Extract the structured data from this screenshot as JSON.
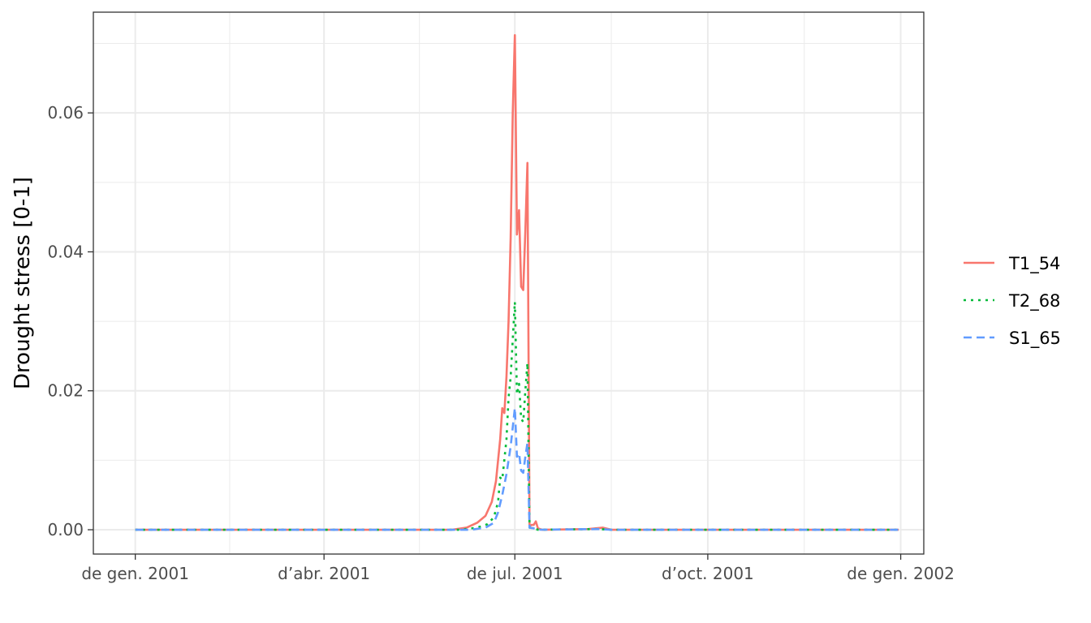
{
  "chart_data": {
    "type": "line",
    "title": "",
    "xlabel": "",
    "ylabel": "Drought stress [0-1]",
    "x_type": "date",
    "xlim": [
      "2000-12-12",
      "2002-01-12"
    ],
    "ylim": [
      -0.0035,
      0.0745
    ],
    "x_ticks": [
      {
        "date": "2001-01-01",
        "label": "de gen. 2001"
      },
      {
        "date": "2001-04-01",
        "label": "d’abr. 2001"
      },
      {
        "date": "2001-07-01",
        "label": "de jul. 2001"
      },
      {
        "date": "2001-10-01",
        "label": "d’oct. 2001"
      },
      {
        "date": "2002-01-01",
        "label": "de gen. 2002"
      }
    ],
    "y_ticks": [
      {
        "value": 0.0,
        "label": "0.00"
      },
      {
        "value": 0.02,
        "label": "0.02"
      },
      {
        "value": 0.04,
        "label": "0.04"
      },
      {
        "value": 0.06,
        "label": "0.06"
      }
    ],
    "grid": true,
    "legend_position": "right",
    "series": [
      {
        "name": "T1_54",
        "color": "#F8766D",
        "dash": "solid",
        "points": [
          [
            "2001-01-01",
            0
          ],
          [
            "2001-06-01",
            0
          ],
          [
            "2001-06-08",
            0.0003
          ],
          [
            "2001-06-13",
            0.001
          ],
          [
            "2001-06-17",
            0.002
          ],
          [
            "2001-06-20",
            0.004
          ],
          [
            "2001-06-22",
            0.007
          ],
          [
            "2001-06-23",
            0.01
          ],
          [
            "2001-06-24",
            0.013
          ],
          [
            "2001-06-25",
            0.0175
          ],
          [
            "2001-06-26",
            0.0168
          ],
          [
            "2001-06-27",
            0.022
          ],
          [
            "2001-06-28",
            0.03
          ],
          [
            "2001-06-29",
            0.042
          ],
          [
            "2001-06-30",
            0.06
          ],
          [
            "2001-07-01",
            0.0712
          ],
          [
            "2001-07-02",
            0.0425
          ],
          [
            "2001-07-03",
            0.046
          ],
          [
            "2001-07-04",
            0.035
          ],
          [
            "2001-07-05",
            0.0345
          ],
          [
            "2001-07-06",
            0.043
          ],
          [
            "2001-07-07",
            0.0528
          ],
          [
            "2001-07-08",
            0.0005
          ],
          [
            "2001-07-09",
            0.0007
          ],
          [
            "2001-07-10",
            0.0007
          ],
          [
            "2001-07-11",
            0.0012
          ],
          [
            "2001-07-12",
            0.0002
          ],
          [
            "2001-07-14",
            0
          ],
          [
            "2001-08-05",
            0.0001
          ],
          [
            "2001-08-12",
            0.0003
          ],
          [
            "2001-08-16",
            0
          ],
          [
            "2001-12-31",
            0
          ]
        ]
      },
      {
        "name": "T2_68",
        "color": "#00BA38",
        "dash": "dotted",
        "points": [
          [
            "2001-01-01",
            0
          ],
          [
            "2001-06-05",
            0
          ],
          [
            "2001-06-13",
            0.0003
          ],
          [
            "2001-06-18",
            0.0008
          ],
          [
            "2001-06-21",
            0.0018
          ],
          [
            "2001-06-23",
            0.004
          ],
          [
            "2001-06-24",
            0.0075
          ],
          [
            "2001-06-25",
            0.0072
          ],
          [
            "2001-06-27",
            0.013
          ],
          [
            "2001-06-28",
            0.019
          ],
          [
            "2001-06-29",
            0.022
          ],
          [
            "2001-07-01",
            0.0328
          ],
          [
            "2001-07-02",
            0.0195
          ],
          [
            "2001-07-03",
            0.021
          ],
          [
            "2001-07-04",
            0.016
          ],
          [
            "2001-07-05",
            0.0155
          ],
          [
            "2001-07-06",
            0.02
          ],
          [
            "2001-07-07",
            0.024
          ],
          [
            "2001-07-08",
            0.0003
          ],
          [
            "2001-07-10",
            0.0002
          ],
          [
            "2001-07-12",
            0
          ],
          [
            "2001-08-10",
            0.0001
          ],
          [
            "2001-08-16",
            0
          ],
          [
            "2001-12-31",
            0
          ]
        ]
      },
      {
        "name": "S1_65",
        "color": "#619CFF",
        "dash": "dashed",
        "points": [
          [
            "2001-01-01",
            0
          ],
          [
            "2001-06-10",
            0
          ],
          [
            "2001-06-17",
            0.0003
          ],
          [
            "2001-06-21",
            0.001
          ],
          [
            "2001-06-23",
            0.0025
          ],
          [
            "2001-06-25",
            0.005
          ],
          [
            "2001-06-27",
            0.008
          ],
          [
            "2001-06-29",
            0.012
          ],
          [
            "2001-07-01",
            0.0175
          ],
          [
            "2001-07-02",
            0.0105
          ],
          [
            "2001-07-03",
            0.011
          ],
          [
            "2001-07-04",
            0.0085
          ],
          [
            "2001-07-05",
            0.0082
          ],
          [
            "2001-07-06",
            0.0105
          ],
          [
            "2001-07-07",
            0.0125
          ],
          [
            "2001-07-08",
            0.0003
          ],
          [
            "2001-07-10",
            0.0002
          ],
          [
            "2001-07-12",
            0
          ],
          [
            "2001-08-10",
            0.0001
          ],
          [
            "2001-08-16",
            0
          ],
          [
            "2001-12-31",
            0
          ]
        ]
      }
    ]
  }
}
